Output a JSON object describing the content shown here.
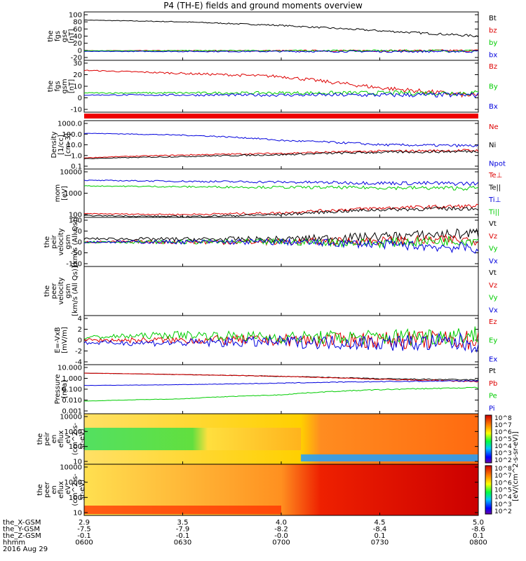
{
  "title": "P4 (TH-E) fields and ground moments overview",
  "date_label": "2016 Aug 29",
  "colorbar_label": "[eV/(cm^2-s-sr-eV)]",
  "colorbar_ticks": [
    "10^8",
    "10^7",
    "10^6",
    "10^5",
    "10^4",
    "10^3",
    "10^2"
  ],
  "ephemeris": {
    "rows": [
      {
        "label": "the_X-GSM",
        "values": [
          "2.9",
          "3.5",
          "4.0",
          "4.5",
          "5.0"
        ]
      },
      {
        "label": "the_Y-GSM",
        "values": [
          "-7.5",
          "-7.9",
          "-8.2",
          "-8.4",
          "-8.6"
        ]
      },
      {
        "label": "the_Z-GSM",
        "values": [
          "-0.1",
          "-0.1",
          "-0.0",
          "0.1",
          "0.1"
        ]
      },
      {
        "label": "hhmm",
        "values": [
          "0600",
          "0630",
          "0700",
          "0730",
          "0800"
        ]
      }
    ]
  },
  "chart_data": [
    {
      "type": "line",
      "id": "fgs_gse",
      "ylabel": [
        "the",
        "fgs",
        "gse",
        "[nT]"
      ],
      "y_ticks": [
        "100",
        "80",
        "60",
        "40",
        "20",
        "0",
        "-20"
      ],
      "ylim": [
        -20,
        100
      ],
      "x": [
        "0600",
        "0630",
        "0700",
        "0730",
        "0800"
      ],
      "series": [
        {
          "name": "Bt",
          "color": "#000000",
          "values": [
            85,
            80,
            70,
            55,
            40
          ]
        },
        {
          "name": "bz",
          "color": "#dd0000",
          "values": [
            -1,
            -1,
            -1,
            -1,
            -1
          ]
        },
        {
          "name": "by",
          "color": "#00cc00",
          "values": [
            -1,
            -1,
            -1,
            -1,
            -1
          ]
        },
        {
          "name": "bx",
          "color": "#0000dd",
          "values": [
            -3,
            -3,
            -3,
            -3,
            -3
          ]
        }
      ]
    },
    {
      "type": "line",
      "id": "fgs_gsm",
      "ylabel": [
        "the",
        "fgs",
        "gsm",
        "[nT]"
      ],
      "y_ticks": [
        "30",
        "20",
        "10",
        "0",
        "-10"
      ],
      "ylim": [
        -15,
        30
      ],
      "x": [
        "0600",
        "0630",
        "0700",
        "0730",
        "0800"
      ],
      "series": [
        {
          "name": "Bz",
          "color": "#dd0000",
          "values": [
            23,
            20,
            17,
            6,
            -2
          ]
        },
        {
          "name": "By",
          "color": "#00cc00",
          "values": [
            1,
            1,
            1,
            1,
            1
          ]
        },
        {
          "name": "Bx",
          "color": "#0000dd",
          "values": [
            -1,
            -1,
            -1,
            -1,
            -1
          ]
        }
      ]
    },
    {
      "type": "line",
      "id": "density",
      "ylabel": [
        "Density",
        "[1/cc]",
        "[cm-3]"
      ],
      "y_ticks": [
        "1000.0",
        "100.0",
        "10.0",
        "1.0",
        "0.1"
      ],
      "log": true,
      "x": [
        "0600",
        "0630",
        "0700",
        "0730",
        "0800"
      ],
      "series": [
        {
          "name": "Ne",
          "color": "#dd0000",
          "values": [
            0.6,
            1.1,
            1.6,
            2.5,
            3.0
          ]
        },
        {
          "name": "Ni",
          "color": "#000000",
          "values": [
            0.5,
            0.8,
            1.2,
            2.0,
            2.5
          ]
        },
        {
          "name": "Npot",
          "color": "#0000dd",
          "values": [
            120,
            80,
            25,
            10,
            8
          ]
        }
      ]
    },
    {
      "type": "line",
      "id": "temperature",
      "ylabel": [
        "mom",
        "[eV]"
      ],
      "y_ticks": [
        "10000",
        "1000",
        "100"
      ],
      "log": true,
      "x": [
        "0600",
        "0630",
        "0700",
        "0730",
        "0800"
      ],
      "series": [
        {
          "name": "Te⊥",
          "color": "#dd0000",
          "values": [
            110,
            100,
            120,
            200,
            250
          ]
        },
        {
          "name": "Te||",
          "color": "#000000",
          "values": [
            90,
            80,
            100,
            170,
            200
          ]
        },
        {
          "name": "Ti⊥",
          "color": "#0000dd",
          "values": [
            4000,
            3600,
            3300,
            3000,
            2800
          ]
        },
        {
          "name": "Ti||",
          "color": "#00cc00",
          "values": [
            2200,
            2000,
            1900,
            1800,
            1700
          ]
        }
      ]
    },
    {
      "type": "line",
      "id": "peir_velocity",
      "ylabel": [
        "the",
        "peir",
        "velocity",
        "gsm",
        "[km/s (All Qs)]"
      ],
      "y_ticks": [
        "100",
        "50",
        "0",
        "-50",
        "-100"
      ],
      "ylim": [
        -100,
        100
      ],
      "x": [
        "0600",
        "0630",
        "0700",
        "0730",
        "0800"
      ],
      "series": [
        {
          "name": "Vt",
          "color": "#000000",
          "values": [
            15,
            12,
            12,
            25,
            40
          ]
        },
        {
          "name": "Vz",
          "color": "#dd0000",
          "values": [
            0,
            0,
            0,
            5,
            10
          ]
        },
        {
          "name": "Vy",
          "color": "#00cc00",
          "values": [
            0,
            0,
            0,
            -5,
            10
          ]
        },
        {
          "name": "Vx",
          "color": "#0000dd",
          "values": [
            0,
            0,
            0,
            -10,
            -30
          ]
        }
      ]
    },
    {
      "type": "line",
      "id": "peer_velocity",
      "ylabel": [
        "the",
        "peer",
        "velocity",
        "gsm",
        "[km/s (All Qs)]"
      ],
      "series": [
        {
          "name": "Vt",
          "color": "#000000"
        },
        {
          "name": "Vz",
          "color": "#dd0000"
        },
        {
          "name": "Vy",
          "color": "#00cc00"
        },
        {
          "name": "Vx",
          "color": "#0000dd"
        }
      ]
    },
    {
      "type": "line",
      "id": "efield",
      "ylabel": [
        "E=-VxB",
        "[mV/m]"
      ],
      "y_ticks": [
        "4",
        "2",
        "0",
        "-2",
        "-4"
      ],
      "ylim": [
        -4,
        4
      ],
      "x": [
        "0600",
        "0630",
        "0700",
        "0730",
        "0800"
      ],
      "series": [
        {
          "name": "Ez",
          "color": "#dd0000",
          "values": [
            0,
            0,
            0,
            0,
            0
          ]
        },
        {
          "name": "Ey",
          "color": "#00cc00",
          "values": [
            0.5,
            1,
            0.5,
            0.5,
            1
          ]
        },
        {
          "name": "Ex",
          "color": "#0000dd",
          "values": [
            -0.5,
            -0.5,
            -0.3,
            -0.5,
            -0.5
          ]
        }
      ]
    },
    {
      "type": "line",
      "id": "pressure",
      "ylabel": [
        "Pressure",
        "[nPa]"
      ],
      "y_ticks": [
        "10.000",
        "1.000",
        "0.100",
        "0.010",
        "0.001"
      ],
      "log": true,
      "x": [
        "0600",
        "0630",
        "0700",
        "0730",
        "0800"
      ],
      "series": [
        {
          "name": "Pt",
          "color": "#000000",
          "values": [
            3.0,
            2.2,
            1.5,
            0.9,
            0.7
          ]
        },
        {
          "name": "Pb",
          "color": "#dd0000",
          "values": [
            3.0,
            2.2,
            1.5,
            0.8,
            0.5
          ]
        },
        {
          "name": "Pe",
          "color": "#00cc00",
          "values": [
            0.008,
            0.013,
            0.03,
            0.09,
            0.14
          ]
        },
        {
          "name": "Pi",
          "color": "#0000dd",
          "values": [
            0.22,
            0.26,
            0.36,
            0.5,
            0.6
          ]
        }
      ]
    },
    {
      "type": "heatmap",
      "id": "peir_eflux",
      "ylabel": [
        "the",
        "peir",
        "en",
        "eflux",
        "eV",
        "(cm^2-s-",
        "sr-eV)"
      ],
      "y_ticks": [
        "10000",
        "1000",
        "100",
        "10"
      ],
      "log": true
    },
    {
      "type": "heatmap",
      "id": "peer_eflux",
      "ylabel": [
        "the",
        "peer",
        "en",
        "eflux",
        "eV",
        "(cm^2-s-",
        "sr-eV)"
      ],
      "y_ticks": [
        "10000",
        "1000",
        "100",
        "10"
      ],
      "log": true
    }
  ]
}
